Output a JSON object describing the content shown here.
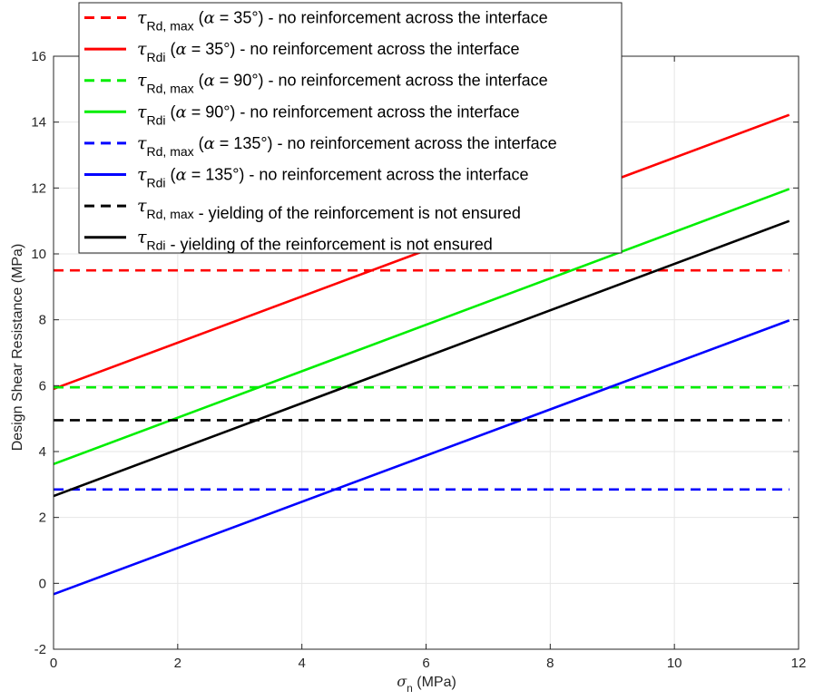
{
  "chart_data": {
    "type": "line",
    "title": "",
    "xlabel": {
      "symbol": "σ",
      "subscript": "n",
      "unit": " (MPa)"
    },
    "ylabel": "Design Shear Resistance (MPa)",
    "xlim": [
      0,
      12
    ],
    "ylim": [
      -2,
      16
    ],
    "xticks": [
      0,
      2,
      4,
      6,
      8,
      10,
      12
    ],
    "yticks": [
      -2,
      0,
      2,
      4,
      6,
      8,
      10,
      12,
      14,
      16
    ],
    "xtick_labels": [
      "0",
      "2",
      "4",
      "6",
      "8",
      "10",
      "12"
    ],
    "ytick_labels": [
      "-2",
      "0",
      "2",
      "4",
      "6",
      "8",
      "10",
      "12",
      "14",
      "16"
    ],
    "grid": true,
    "legend_position": "top-left",
    "series": [
      {
        "sym": "τ",
        "sub": "Rd, max",
        "alpha_prefix": " (",
        "alpha_sym": "α",
        "alpha_text": " = 35°) - no reinforcement across the interface",
        "color": "#ff0000",
        "dash": true,
        "x": [
          0,
          11.85
        ],
        "y": [
          9.5,
          9.5
        ]
      },
      {
        "sym": "τ",
        "sub": "Rdi",
        "alpha_prefix": " (",
        "alpha_sym": "α",
        "alpha_text": " = 35°) - no reinforcement across the interface",
        "color": "#ff0000",
        "dash": false,
        "x": [
          0,
          11.85
        ],
        "y": [
          5.9,
          14.22
        ]
      },
      {
        "sym": "τ",
        "sub": "Rd, max",
        "alpha_prefix": " (",
        "alpha_sym": "α",
        "alpha_text": " = 90°) - no reinforcement across the interface",
        "color": "#00ee00",
        "dash": true,
        "x": [
          0,
          11.85
        ],
        "y": [
          5.95,
          5.95
        ]
      },
      {
        "sym": "τ",
        "sub": "Rdi",
        "alpha_prefix": " (",
        "alpha_sym": "α",
        "alpha_text": " = 90°) - no reinforcement across the interface",
        "color": "#00ee00",
        "dash": false,
        "x": [
          0,
          11.85
        ],
        "y": [
          3.62,
          11.97
        ]
      },
      {
        "sym": "τ",
        "sub": "Rd, max",
        "alpha_prefix": " (",
        "alpha_sym": "α",
        "alpha_text": " = 135°) - no reinforcement across the interface",
        "color": "#0000ff",
        "dash": true,
        "x": [
          0,
          11.85
        ],
        "y": [
          2.85,
          2.85
        ]
      },
      {
        "sym": "τ",
        "sub": "Rdi",
        "alpha_prefix": " (",
        "alpha_sym": "α",
        "alpha_text": " = 135°) - no reinforcement across the interface",
        "color": "#0000ff",
        "dash": false,
        "x": [
          0,
          11.85
        ],
        "y": [
          -0.33,
          7.98
        ]
      },
      {
        "sym": "τ",
        "sub": "Rd, max",
        "alpha_prefix": "",
        "alpha_sym": "",
        "alpha_text": " - yielding of the reinforcement is not ensured",
        "color": "#000000",
        "dash": true,
        "x": [
          0,
          11.85
        ],
        "y": [
          4.95,
          4.95
        ]
      },
      {
        "sym": "τ",
        "sub": "Rdi",
        "alpha_prefix": "",
        "alpha_sym": "",
        "alpha_text": " - yielding of the reinforcement is not ensured",
        "color": "#000000",
        "dash": false,
        "x": [
          0,
          11.85
        ],
        "y": [
          2.65,
          11.0
        ]
      }
    ]
  }
}
